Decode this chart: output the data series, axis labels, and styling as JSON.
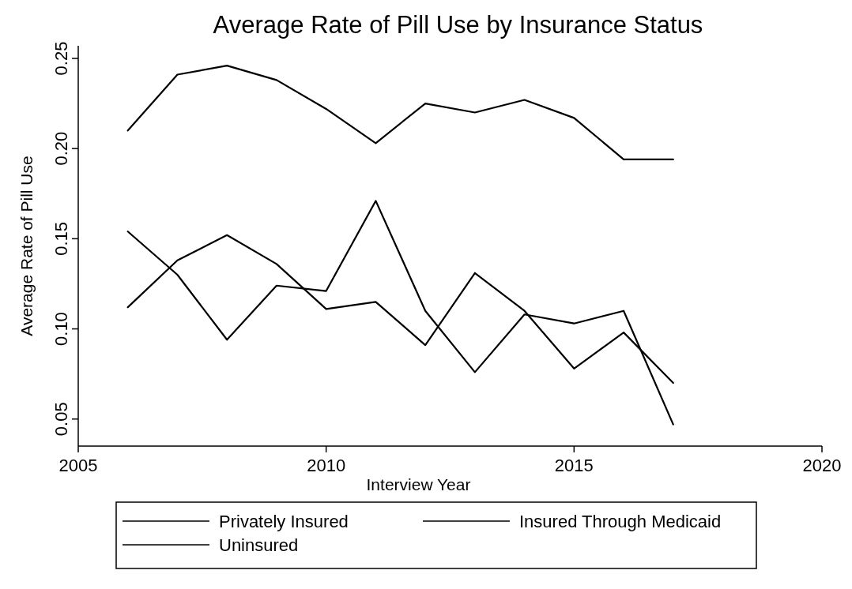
{
  "chart_data": {
    "type": "line",
    "title": "Average Rate of Pill Use by Insurance Status",
    "xlabel": "Interview Year",
    "ylabel": "Average Rate of Pill Use",
    "x": [
      2006,
      2007,
      2008,
      2009,
      2010,
      2011,
      2012,
      2013,
      2014,
      2015,
      2016,
      2017
    ],
    "series": [
      {
        "name": "Privately Insured",
        "color": "#000000",
        "values": [
          0.21,
          0.241,
          0.246,
          0.238,
          0.222,
          0.203,
          0.225,
          0.22,
          0.227,
          0.217,
          0.194,
          0.194
        ]
      },
      {
        "name": "Insured Through Medicaid",
        "color": "#000000",
        "values": [
          0.154,
          0.13,
          0.094,
          0.124,
          0.121,
          0.171,
          0.11,
          0.076,
          0.108,
          0.103,
          0.11,
          0.047
        ]
      },
      {
        "name": "Uninsured",
        "color": "#000000",
        "values": [
          0.112,
          0.138,
          0.152,
          0.136,
          0.111,
          0.115,
          0.091,
          0.131,
          0.11,
          0.078,
          0.098,
          0.07
        ]
      }
    ],
    "xlim": [
      2005,
      2020
    ],
    "xticks": [
      2005,
      2010,
      2015,
      2020
    ],
    "ylim": [
      0.035,
      0.257
    ],
    "yticks": [
      {
        "value": 0.05,
        "label": "0.05"
      },
      {
        "value": 0.1,
        "label": "0.10"
      },
      {
        "value": 0.15,
        "label": "0.15"
      },
      {
        "value": 0.2,
        "label": "0.20"
      },
      {
        "value": 0.25,
        "label": "0.25"
      }
    ],
    "legend": "bottom",
    "grid": false,
    "marker": "none",
    "line_style": "solid"
  }
}
